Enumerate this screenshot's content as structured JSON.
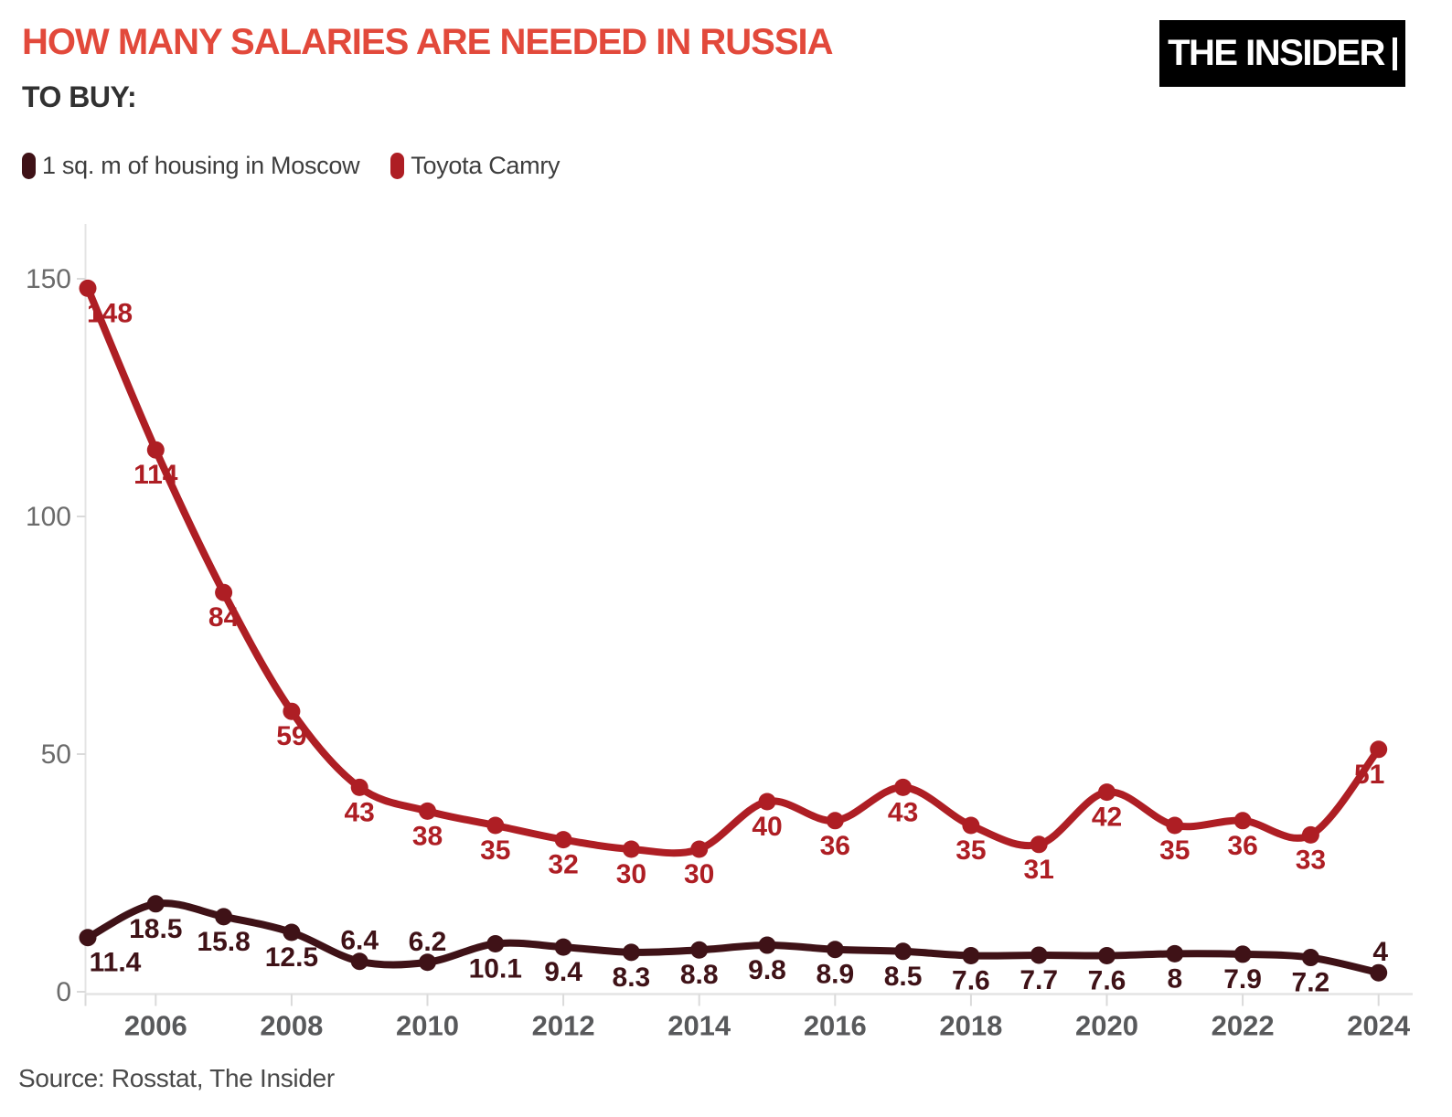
{
  "header": {
    "title": "HOW MANY SALARIES ARE NEEDED IN RUSSIA",
    "subtitle": "TO BUY:",
    "logo_text": "THE INSIDER"
  },
  "legend": {
    "items": [
      {
        "label": "1 sq. m of housing in Moscow",
        "color": "#3f1217"
      },
      {
        "label": "Toyota Camry",
        "color": "#ae1e24"
      }
    ]
  },
  "footer": {
    "source": "Source: Rosstat, The Insider"
  },
  "chart_data": {
    "type": "line",
    "title": "How many salaries are needed in Russia to buy",
    "x": [
      2005,
      2006,
      2007,
      2008,
      2009,
      2010,
      2011,
      2012,
      2013,
      2014,
      2015,
      2016,
      2017,
      2018,
      2019,
      2020,
      2021,
      2022,
      2023,
      2024
    ],
    "x_tick_labels": [
      2006,
      2008,
      2010,
      2012,
      2014,
      2016,
      2018,
      2020,
      2022,
      2024
    ],
    "y_ticks": [
      0,
      50,
      100,
      150
    ],
    "ylim": [
      0,
      162
    ],
    "grid": false,
    "smooth": true,
    "legend_position": "top-left",
    "series": [
      {
        "name": "1 sq. m of housing in Moscow",
        "color": "#3f1217",
        "values": [
          11.4,
          18.5,
          15.8,
          12.5,
          6.4,
          6.2,
          10.1,
          9.4,
          8.3,
          8.8,
          9.8,
          8.9,
          8.5,
          7.6,
          7.7,
          7.6,
          8,
          7.9,
          7.2,
          4
        ],
        "label_overrides": {
          "0": {
            "dx": 30
          },
          "4": {
            "pos": "above"
          },
          "5": {
            "pos": "above"
          },
          "19": {
            "pos": "above",
            "dx": 2
          }
        }
      },
      {
        "name": "Toyota Camry",
        "color": "#ae1e24",
        "values": [
          148,
          114,
          84,
          59,
          43,
          38,
          35,
          32,
          30,
          30,
          40,
          36,
          43,
          35,
          31,
          42,
          35,
          36,
          33,
          51
        ],
        "label_overrides": {
          "0": {
            "dx": 24
          },
          "19": {
            "dx": -10
          }
        }
      }
    ],
    "axis_colors": {
      "line": "#e4e4e4",
      "tick": "#dadada",
      "y_label": "#6b6b6b",
      "x_label": "#58595b"
    }
  }
}
